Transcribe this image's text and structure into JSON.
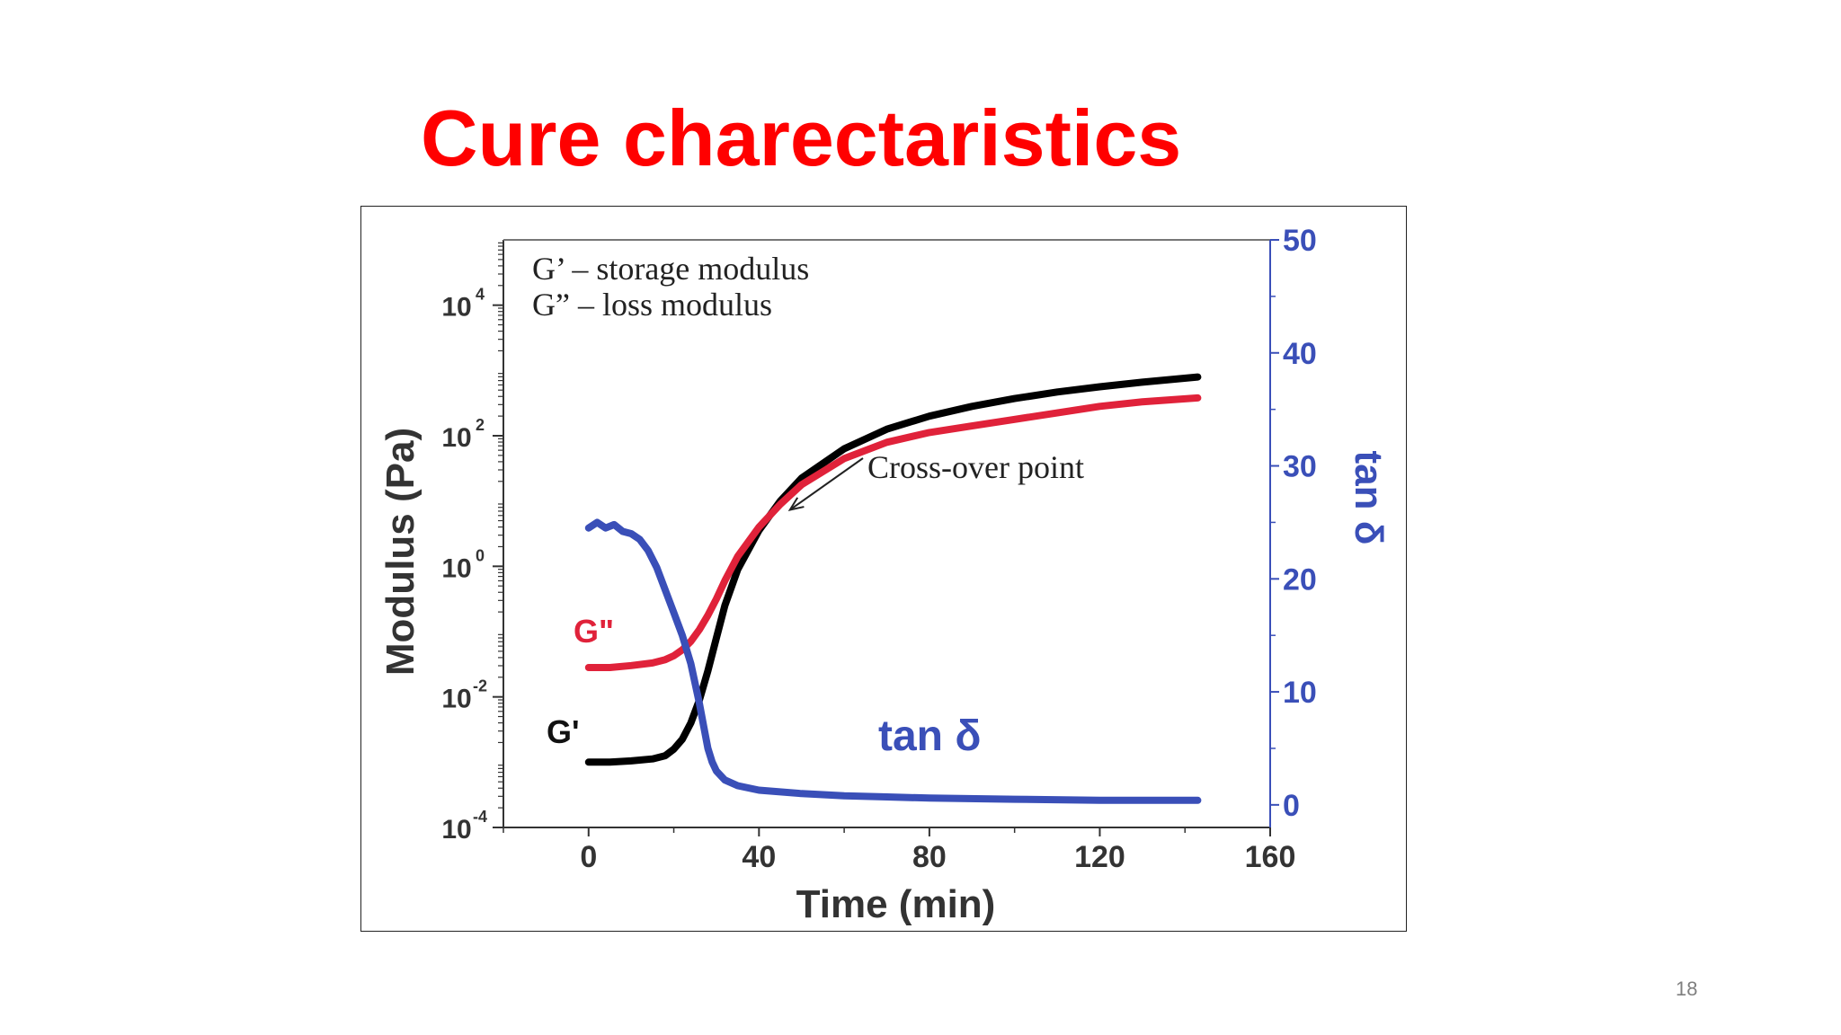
{
  "slide": {
    "title": "Cure charectaristics",
    "page_number": "18"
  },
  "chart_data": {
    "type": "line",
    "title": "",
    "xlabel": "Time (min)",
    "ylabel": "Modulus (Pa)",
    "y2label": "tan δ",
    "xlim": [
      -20,
      160
    ],
    "ylim": [
      -4,
      5
    ],
    "y_scale": "log10",
    "y2lim": [
      -2,
      50
    ],
    "x_ticks": [
      0,
      40,
      80,
      120,
      160
    ],
    "y_ticks": [
      {
        "base": "10",
        "exp": "4"
      },
      {
        "base": "10",
        "exp": "2"
      },
      {
        "base": "10",
        "exp": "0"
      },
      {
        "base": "10",
        "exp": "-2"
      },
      {
        "base": "10",
        "exp": "-4"
      }
    ],
    "y2_ticks": [
      50,
      40,
      30,
      20,
      10,
      0
    ],
    "legend_lines": [
      "G’ – storage modulus",
      "G” – loss modulus"
    ],
    "annotation": {
      "text": "Cross-over point",
      "x": 46,
      "y_log10": 0.92
    },
    "series_labels": {
      "g_double_prime": "G\"",
      "g_prime": "G'",
      "tan_delta": "tan δ"
    },
    "colors": {
      "g_prime": "#000000",
      "g_double_prime": "#e0223a",
      "tan_delta": "#3a4fb8",
      "axis": "#333333",
      "right_axis": "#3a4fb8"
    },
    "series": [
      {
        "key": "g_prime",
        "axis": "left",
        "x": [
          0,
          5,
          10,
          15,
          18,
          20,
          22,
          24,
          26,
          28,
          30,
          32,
          35,
          40,
          45,
          50,
          60,
          70,
          80,
          90,
          100,
          110,
          120,
          130,
          143
        ],
        "y_log10": [
          -3.0,
          -3.0,
          -2.98,
          -2.95,
          -2.9,
          -2.8,
          -2.65,
          -2.4,
          -2.05,
          -1.6,
          -1.1,
          -0.6,
          -0.05,
          0.55,
          1.0,
          1.35,
          1.8,
          2.1,
          2.3,
          2.45,
          2.57,
          2.67,
          2.75,
          2.82,
          2.9
        ]
      },
      {
        "key": "g_double_prime",
        "axis": "left",
        "x": [
          0,
          5,
          10,
          15,
          18,
          20,
          22,
          24,
          26,
          28,
          30,
          32,
          35,
          40,
          45,
          50,
          60,
          70,
          80,
          90,
          100,
          110,
          120,
          130,
          143
        ],
        "y_log10": [
          -1.55,
          -1.55,
          -1.52,
          -1.48,
          -1.43,
          -1.37,
          -1.28,
          -1.15,
          -0.97,
          -0.75,
          -0.5,
          -0.22,
          0.15,
          0.6,
          0.95,
          1.25,
          1.65,
          1.9,
          2.05,
          2.15,
          2.25,
          2.35,
          2.45,
          2.52,
          2.58
        ]
      },
      {
        "key": "tan_delta",
        "axis": "right",
        "x": [
          0,
          2,
          4,
          6,
          8,
          10,
          12,
          14,
          16,
          18,
          20,
          22,
          24,
          26,
          27,
          28,
          29,
          30,
          32,
          35,
          40,
          50,
          60,
          70,
          80,
          100,
          120,
          143
        ],
        "y": [
          24.5,
          25.0,
          24.5,
          24.8,
          24.2,
          24.0,
          23.5,
          22.5,
          21.0,
          19.0,
          17.0,
          15.0,
          12.5,
          9.0,
          7.0,
          5.0,
          3.8,
          3.0,
          2.2,
          1.7,
          1.3,
          1.0,
          0.8,
          0.7,
          0.6,
          0.5,
          0.4,
          0.4
        ]
      }
    ]
  }
}
